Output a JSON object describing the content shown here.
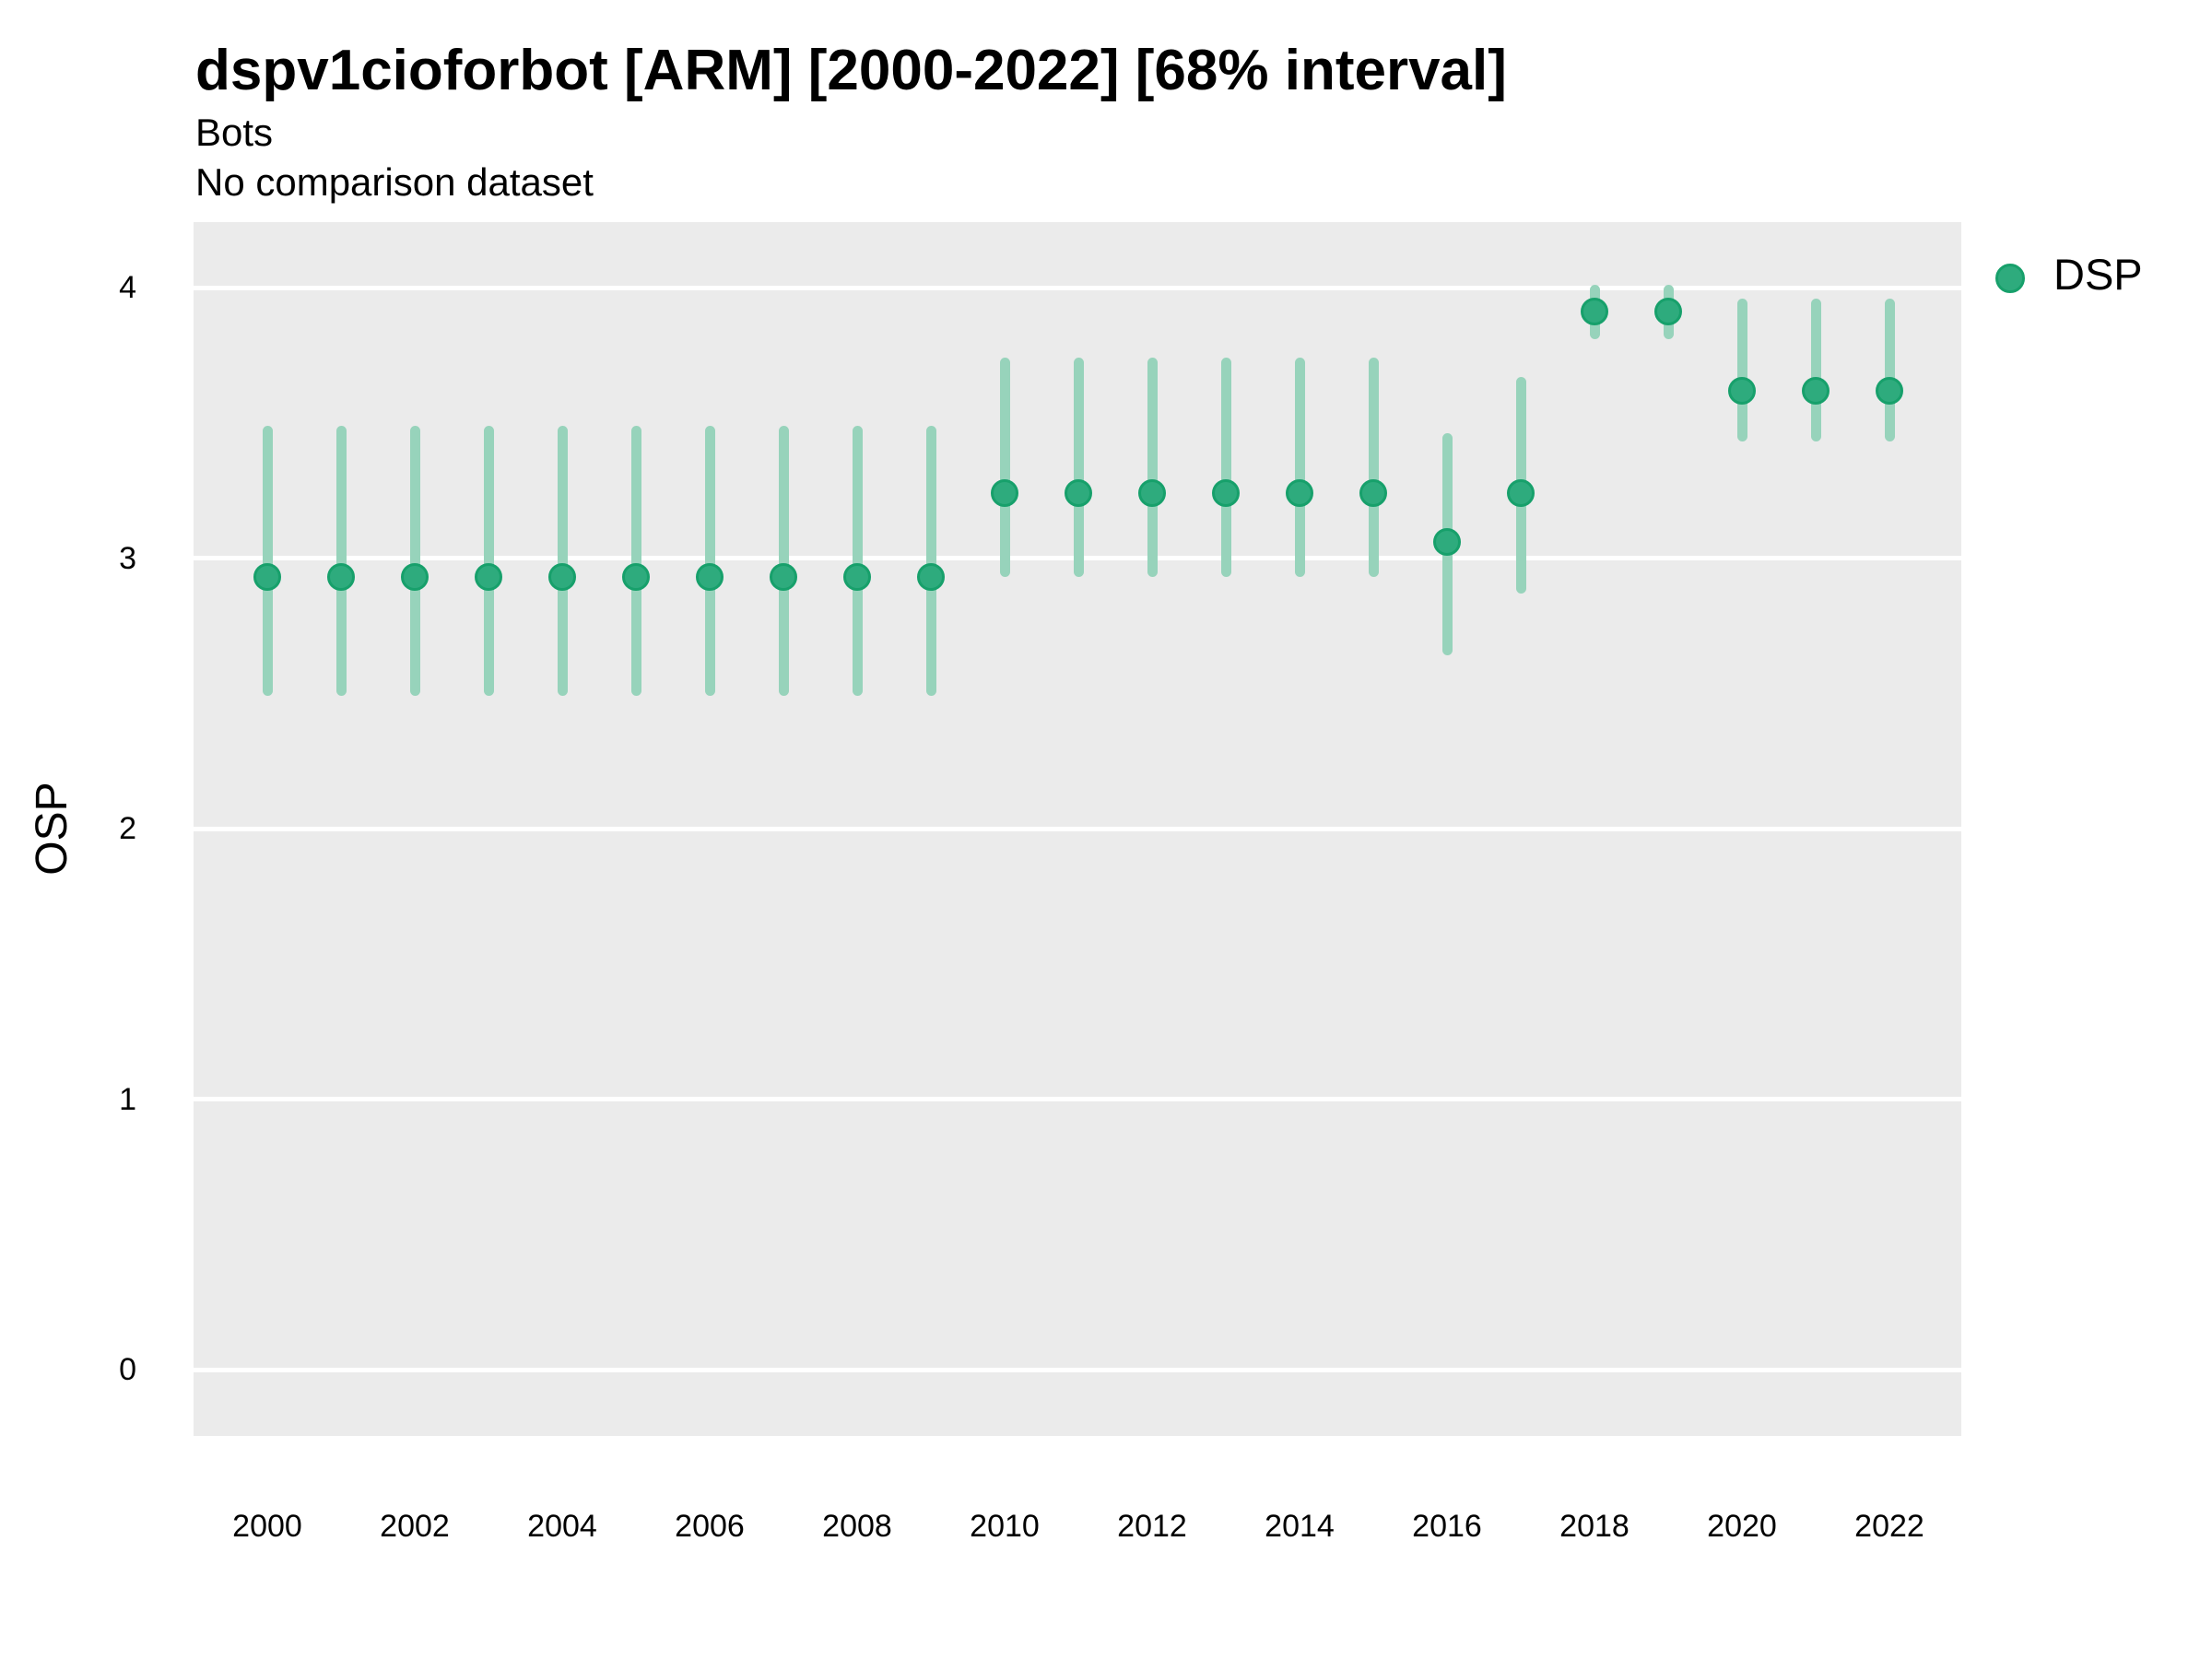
{
  "chart_data": {
    "type": "pointrange",
    "title": "dspv1cioforbot [ARM] [2000-2022] [68% interval]",
    "subtitle_line1": "Bots",
    "subtitle_line2": "No comparison dataset",
    "xlabel": "",
    "ylabel": "OSP",
    "interval_label": "68% interval",
    "legend": {
      "position": "right",
      "entries": [
        {
          "label": "DSP",
          "color": "#2EAB7D"
        }
      ]
    },
    "ylim": [
      -0.25,
      4.24
    ],
    "y_ticks": [
      0,
      1,
      2,
      3,
      4
    ],
    "x_ticks": [
      2000,
      2002,
      2004,
      2006,
      2008,
      2010,
      2012,
      2014,
      2016,
      2018,
      2020,
      2022
    ],
    "grid": "horizontal-white-on-gray",
    "series": [
      {
        "name": "DSP",
        "points": [
          {
            "year": 2000,
            "mid": 2.93,
            "lo": 2.49,
            "hi": 3.49
          },
          {
            "year": 2001,
            "mid": 2.93,
            "lo": 2.49,
            "hi": 3.49
          },
          {
            "year": 2002,
            "mid": 2.93,
            "lo": 2.49,
            "hi": 3.49
          },
          {
            "year": 2003,
            "mid": 2.93,
            "lo": 2.49,
            "hi": 3.49
          },
          {
            "year": 2004,
            "mid": 2.93,
            "lo": 2.49,
            "hi": 3.49
          },
          {
            "year": 2005,
            "mid": 2.93,
            "lo": 2.49,
            "hi": 3.49
          },
          {
            "year": 2006,
            "mid": 2.93,
            "lo": 2.49,
            "hi": 3.49
          },
          {
            "year": 2007,
            "mid": 2.93,
            "lo": 2.49,
            "hi": 3.49
          },
          {
            "year": 2008,
            "mid": 2.93,
            "lo": 2.49,
            "hi": 3.49
          },
          {
            "year": 2009,
            "mid": 2.93,
            "lo": 2.49,
            "hi": 3.49
          },
          {
            "year": 2010,
            "mid": 3.24,
            "lo": 2.93,
            "hi": 3.74
          },
          {
            "year": 2011,
            "mid": 3.24,
            "lo": 2.93,
            "hi": 3.74
          },
          {
            "year": 2012,
            "mid": 3.24,
            "lo": 2.93,
            "hi": 3.74
          },
          {
            "year": 2013,
            "mid": 3.24,
            "lo": 2.93,
            "hi": 3.74
          },
          {
            "year": 2014,
            "mid": 3.24,
            "lo": 2.93,
            "hi": 3.74
          },
          {
            "year": 2015,
            "mid": 3.24,
            "lo": 2.93,
            "hi": 3.74
          },
          {
            "year": 2016,
            "mid": 3.06,
            "lo": 2.64,
            "hi": 3.46
          },
          {
            "year": 2017,
            "mid": 3.24,
            "lo": 2.87,
            "hi": 3.67
          },
          {
            "year": 2018,
            "mid": 3.91,
            "lo": 3.81,
            "hi": 4.01
          },
          {
            "year": 2019,
            "mid": 3.91,
            "lo": 3.81,
            "hi": 4.01
          },
          {
            "year": 2020,
            "mid": 3.62,
            "lo": 3.43,
            "hi": 3.96
          },
          {
            "year": 2021,
            "mid": 3.62,
            "lo": 3.43,
            "hi": 3.96
          },
          {
            "year": 2022,
            "mid": 3.62,
            "lo": 3.43,
            "hi": 3.96
          }
        ]
      }
    ],
    "colors": {
      "point_fill": "#2EAB7D",
      "point_stroke": "#17A06B",
      "interval_bar": "#97D3BB",
      "plot_background": "#EBEBEB",
      "gridline": "#FFFFFF",
      "text": "#000000"
    }
  }
}
